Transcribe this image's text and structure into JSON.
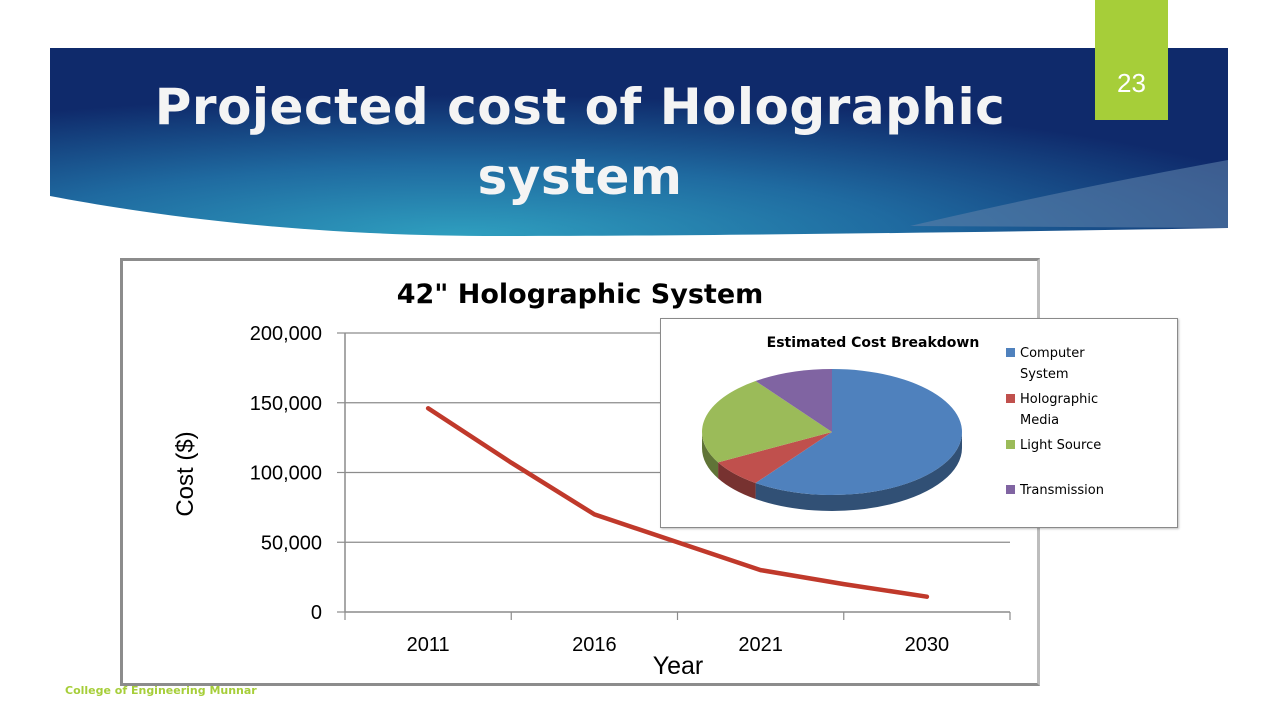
{
  "slide": {
    "title": "Projected cost of Holographic\nsystem",
    "number": "23",
    "footer": "College of Engineering Munnar",
    "colors": {
      "banner_dark": "#0f2a6b",
      "banner_teal": "#2a8fb0",
      "accent": "#a6ce39"
    }
  },
  "chart_data": [
    {
      "type": "line",
      "title": "42\" Holographic System",
      "xlabel": "Year",
      "ylabel": "Cost ($)",
      "categories": [
        "2011",
        "2016",
        "2021",
        "2030"
      ],
      "x": [
        2011,
        2013.5,
        2016,
        2018.5,
        2021,
        2025.5,
        2030
      ],
      "ylim": [
        0,
        200000
      ],
      "yticks": [
        "200,000",
        "150,000",
        "100,000",
        "50,000",
        "0"
      ],
      "ytick_values": [
        200000,
        150000,
        100000,
        50000,
        0
      ],
      "series": [
        {
          "values": [
            146000,
            107000,
            70000,
            50000,
            30000,
            20000,
            11000
          ],
          "color": "#c0392b"
        }
      ],
      "grid": true,
      "legend": "none"
    },
    {
      "type": "pie",
      "title": "Estimated Cost Breakdown",
      "labels": [
        "Computer System",
        "Holographic Media",
        "Light Source",
        "Transmission"
      ],
      "legend_lines": [
        [
          "Computer",
          "System"
        ],
        [
          "Holographic",
          "Media"
        ],
        [
          "Light Source"
        ],
        [
          "Transmission"
        ]
      ],
      "values": [
        60,
        7,
        23,
        10
      ],
      "colors": [
        "#4f81bd",
        "#c0504d",
        "#9bbb59",
        "#8064a2"
      ],
      "legend": "right"
    }
  ]
}
